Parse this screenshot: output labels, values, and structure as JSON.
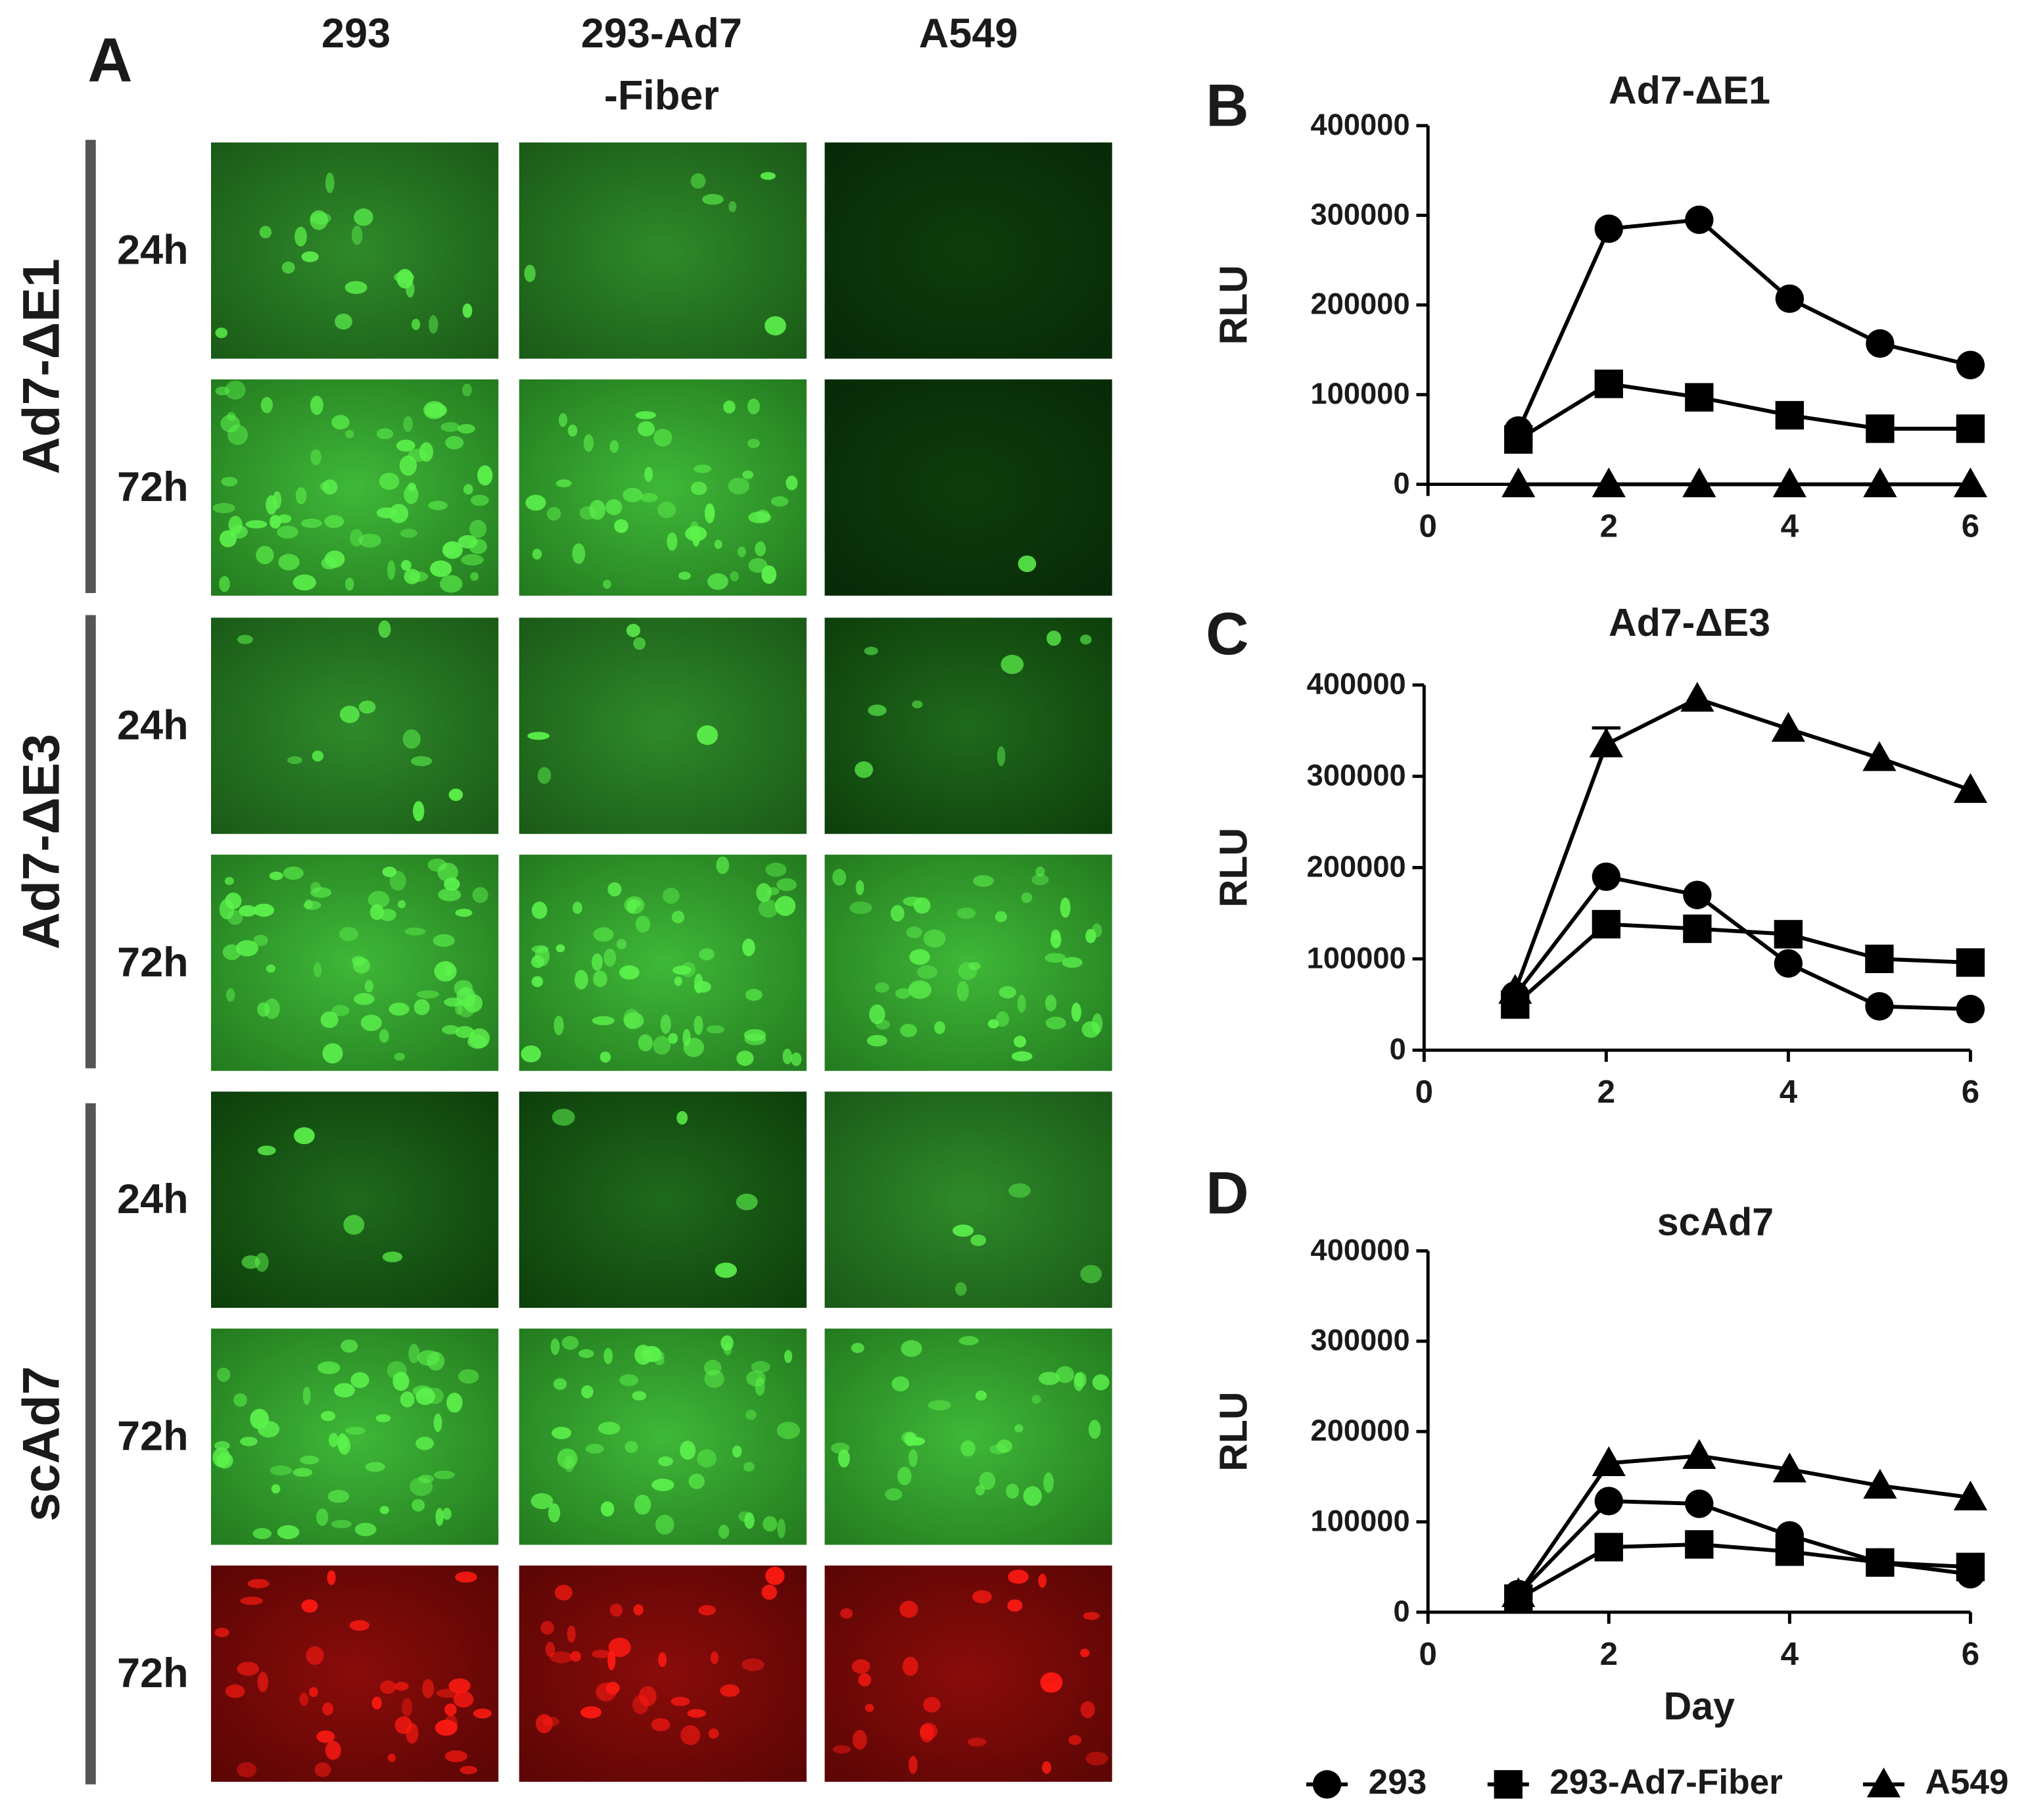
{
  "panel_a": {
    "label": "A",
    "columns": [
      {
        "lines": [
          "293"
        ]
      },
      {
        "lines": [
          "293-Ad7",
          "-Fiber"
        ]
      },
      {
        "lines": [
          "A549"
        ]
      }
    ],
    "groups": [
      {
        "label": "Ad7-ΔE1",
        "rows": [
          "24h",
          "72h"
        ]
      },
      {
        "label": "Ad7-ΔE3",
        "rows": [
          "24h",
          "72h"
        ]
      },
      {
        "label": "scAd7",
        "rows": [
          "24h",
          "72h",
          "72h"
        ]
      }
    ]
  },
  "legend": {
    "entries": [
      {
        "name": "293",
        "marker": "circle"
      },
      {
        "name": "293-Ad7-Fiber",
        "marker": "square"
      },
      {
        "name": "A549",
        "marker": "triangle"
      }
    ]
  },
  "chart_data": [
    {
      "type": "line",
      "panel_label": "B",
      "title": "Ad7-ΔE1",
      "y_label": "RLU",
      "x": [
        1,
        2,
        3,
        4,
        5,
        6
      ],
      "xlim": [
        0,
        6
      ],
      "xticks": [
        0,
        2,
        4,
        6
      ],
      "ylim": [
        0,
        400000
      ],
      "yticks": [
        0,
        100000,
        200000,
        300000,
        400000
      ],
      "series": [
        {
          "marker": "circle",
          "color": "#000000",
          "values": [
            60000,
            285000,
            295000,
            207000,
            157000,
            133000
          ]
        },
        {
          "marker": "square",
          "color": "#000000",
          "values": [
            50000,
            112000,
            97000,
            77000,
            62000,
            62000
          ]
        },
        {
          "marker": "triangle",
          "color": "#000000",
          "values": [
            0,
            0,
            0,
            0,
            0,
            0
          ]
        }
      ]
    },
    {
      "type": "line",
      "panel_label": "C",
      "title": "Ad7-ΔE3",
      "y_label": "RLU",
      "x": [
        1,
        2,
        3,
        4,
        5,
        6
      ],
      "xlim": [
        0,
        6
      ],
      "xticks": [
        0,
        2,
        4,
        6
      ],
      "ylim": [
        0,
        400000
      ],
      "yticks": [
        0,
        100000,
        200000,
        300000,
        400000
      ],
      "series": [
        {
          "marker": "circle",
          "color": "#000000",
          "values": [
            60000,
            190000,
            170000,
            95000,
            48000,
            45000
          ]
        },
        {
          "marker": "square",
          "color": "#000000",
          "values": [
            50000,
            138000,
            133000,
            127000,
            100000,
            96000
          ]
        },
        {
          "marker": "triangle",
          "color": "#000000",
          "values": [
            65000,
            335000,
            385000,
            352000,
            320000,
            285000
          ],
          "errors": [
            null,
            18000,
            null,
            null,
            null,
            null
          ]
        }
      ]
    },
    {
      "type": "line",
      "panel_label": "D",
      "title": "scAd7",
      "x_label": "Day",
      "y_label": "RLU",
      "x": [
        1,
        2,
        3,
        4,
        5,
        6
      ],
      "xlim": [
        0,
        6
      ],
      "xticks": [
        0,
        2,
        4,
        6
      ],
      "ylim": [
        0,
        400000
      ],
      "yticks": [
        0,
        100000,
        200000,
        300000,
        400000
      ],
      "series": [
        {
          "marker": "circle",
          "color": "#000000",
          "values": [
            20000,
            123000,
            120000,
            85000,
            55000,
            42000
          ]
        },
        {
          "marker": "square",
          "color": "#000000",
          "values": [
            15000,
            72000,
            75000,
            67000,
            55000,
            50000
          ]
        },
        {
          "marker": "triangle",
          "color": "#000000",
          "values": [
            20000,
            165000,
            173000,
            158000,
            140000,
            127000
          ]
        }
      ]
    }
  ]
}
